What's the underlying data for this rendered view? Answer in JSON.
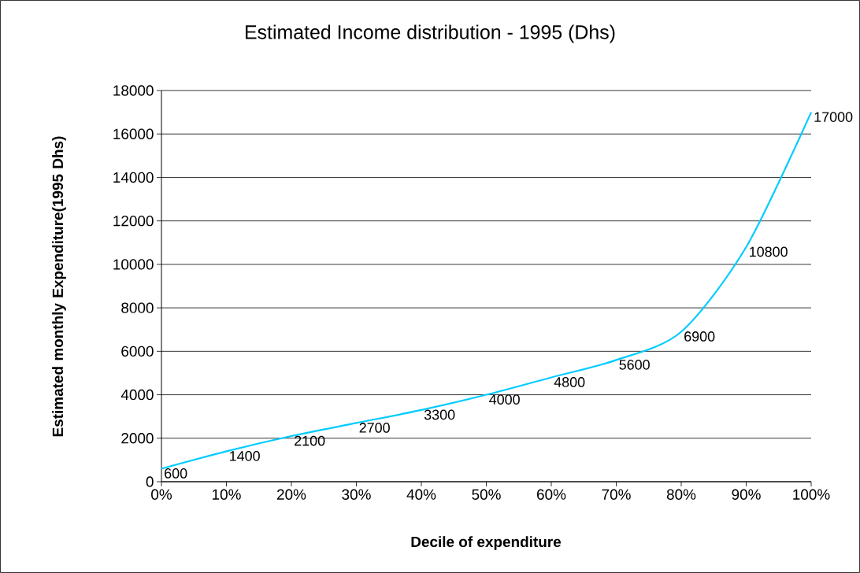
{
  "chart_data": {
    "type": "line",
    "title": "Estimated Income distribution - 1995 (Dhs)",
    "xlabel": "Decile of expenditure",
    "ylabel": "Estimated monthly Expenditure(1995 Dhs)",
    "x": [
      0,
      10,
      20,
      30,
      40,
      50,
      60,
      70,
      80,
      90,
      100
    ],
    "values": [
      600,
      1400,
      2100,
      2700,
      3300,
      4000,
      4800,
      5600,
      6900,
      10800,
      17000
    ],
    "color": "#00ccff",
    "data_labels": true,
    "grid": "y",
    "xlim": [
      0,
      100
    ],
    "xticks": [
      {
        "value": 0,
        "label": "0%"
      },
      {
        "value": 10,
        "label": "10%"
      },
      {
        "value": 20,
        "label": "20%"
      },
      {
        "value": 30,
        "label": "30%"
      },
      {
        "value": 40,
        "label": "40%"
      },
      {
        "value": 50,
        "label": "50%"
      },
      {
        "value": 60,
        "label": "60%"
      },
      {
        "value": 70,
        "label": "70%"
      },
      {
        "value": 80,
        "label": "80%"
      },
      {
        "value": 90,
        "label": "90%"
      },
      {
        "value": 100,
        "label": "100%"
      }
    ],
    "ylim": [
      0,
      18000
    ],
    "yticks": [
      0,
      2000,
      4000,
      6000,
      8000,
      10000,
      12000,
      14000,
      16000,
      18000
    ]
  }
}
